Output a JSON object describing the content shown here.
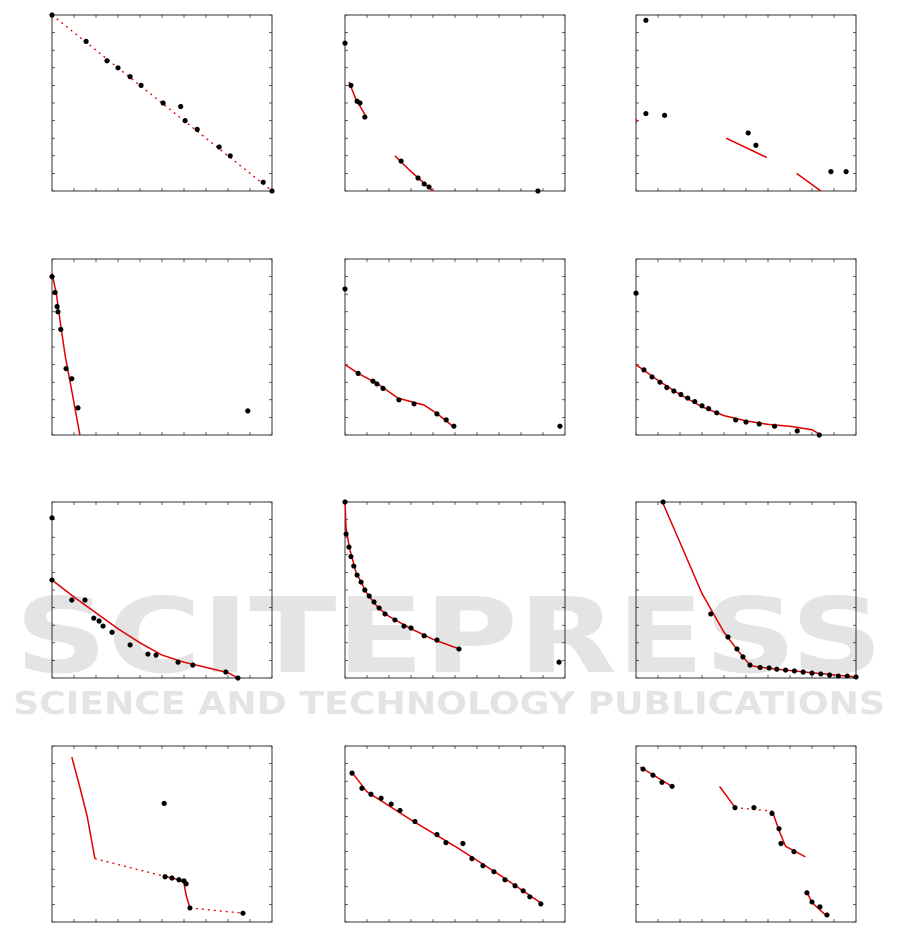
{
  "watermark": {
    "title": "SCITEPRESS",
    "subtitle": "SCIENCE AND TECHNOLOGY PUBLICATIONS"
  },
  "axes": {
    "xlim": [
      0,
      1
    ],
    "ylim": [
      0,
      1
    ],
    "xticks": [
      0,
      0.1,
      0.2,
      0.3,
      0.4,
      0.5,
      0.6,
      0.7,
      0.8,
      0.9,
      1
    ],
    "yticks": [
      0,
      0.1,
      0.2,
      0.3,
      0.4,
      0.5,
      0.6,
      0.7,
      0.8,
      0.9,
      1
    ]
  },
  "chart_data": [
    {
      "type": "scatter",
      "series": [
        {
          "kind": "points",
          "color": "#000000",
          "x": [
            0,
            0.155,
            0.25,
            0.3,
            0.355,
            0.405,
            0.505,
            0.585,
            0.605,
            0.66,
            0.76,
            0.81,
            0.96,
            1
          ],
          "values": [
            1,
            0.85,
            0.74,
            0.7,
            0.65,
            0.6,
            0.5,
            0.48,
            0.4,
            0.35,
            0.25,
            0.2,
            0.05,
            0
          ]
        },
        {
          "kind": "line",
          "style": "dotted",
          "color": "#e00000",
          "x": [
            0,
            1
          ],
          "values": [
            1,
            0
          ]
        }
      ]
    },
    {
      "type": "scatter",
      "series": [
        {
          "kind": "points",
          "color": "#000000",
          "x": [
            0,
            0.027,
            0.055,
            0.068,
            0.09,
            0.255,
            0.332,
            0.36,
            0.382,
            0.877
          ],
          "values": [
            0.84,
            0.6,
            0.51,
            0.5,
            0.42,
            0.17,
            0.074,
            0.04,
            0.023,
            0
          ]
        },
        {
          "kind": "line",
          "color": "#e00000",
          "x": [
            0.018,
            0.05,
            0.1,
            null,
            0.227,
            0.3,
            0.4
          ],
          "values": [
            0.62,
            0.52,
            0.415,
            null,
            0.2,
            0.11,
            0
          ]
        }
      ]
    },
    {
      "type": "scatter",
      "series": [
        {
          "kind": "points",
          "color": "#000000",
          "x": [
            0.045,
            0.045,
            0.13,
            0.51,
            0.545,
            0.886,
            0.955
          ],
          "values": [
            0.97,
            0.44,
            0.43,
            0.33,
            0.26,
            0.11,
            0.11
          ]
        },
        {
          "kind": "line",
          "color": "#e00000",
          "x": [
            0,
            0.005,
            null,
            0.41,
            0.595,
            null,
            0.73,
            0.84
          ],
          "values": [
            0.41,
            0.39,
            null,
            0.3,
            0.19,
            null,
            0.1,
            0
          ]
        }
      ]
    },
    {
      "type": "scatter",
      "series": [
        {
          "kind": "points",
          "color": "#000000",
          "x": [
            0,
            0.014,
            0.023,
            0.027,
            0.04,
            0.064,
            0.09,
            0.118,
            0.89
          ],
          "values": [
            0.9,
            0.81,
            0.73,
            0.7,
            0.6,
            0.377,
            0.32,
            0.154,
            0.137
          ]
        },
        {
          "kind": "line",
          "color": "#e00000",
          "x": [
            0,
            0.02,
            0.04,
            0.06,
            0.09,
            0.127
          ],
          "values": [
            0.92,
            0.8,
            0.62,
            0.45,
            0.25,
            0
          ]
        }
      ]
    },
    {
      "type": "scatter",
      "series": [
        {
          "kind": "points",
          "color": "#000000",
          "x": [
            0,
            0.06,
            0.127,
            0.145,
            0.173,
            0.245,
            0.314,
            0.418,
            0.46,
            0.495,
            0.977
          ],
          "values": [
            0.83,
            0.35,
            0.306,
            0.29,
            0.265,
            0.2,
            0.177,
            0.12,
            0.086,
            0.05,
            0.05
          ]
        },
        {
          "kind": "line",
          "color": "#e00000",
          "x": [
            0,
            0.06,
            0.15,
            0.24,
            0.3,
            0.36,
            0.42,
            0.5
          ],
          "values": [
            0.4,
            0.35,
            0.29,
            0.21,
            0.19,
            0.17,
            0.12,
            0.04
          ]
        }
      ]
    },
    {
      "type": "scatter",
      "series": [
        {
          "kind": "points",
          "color": "#000000",
          "x": [
            0,
            0.036,
            0.073,
            0.109,
            0.14,
            0.172,
            0.204,
            0.235,
            0.267,
            0.3,
            0.33,
            0.367,
            0.453,
            0.5,
            0.56,
            0.63,
            0.733,
            0.833
          ],
          "values": [
            0.806,
            0.37,
            0.33,
            0.3,
            0.27,
            0.25,
            0.23,
            0.21,
            0.19,
            0.166,
            0.15,
            0.126,
            0.086,
            0.074,
            0.063,
            0.05,
            0.023,
            0
          ]
        },
        {
          "kind": "line",
          "color": "#e00000",
          "x": [
            0,
            0.1,
            0.2,
            0.3,
            0.4,
            0.5,
            0.6,
            0.7,
            0.8,
            0.84
          ],
          "values": [
            0.4,
            0.31,
            0.23,
            0.16,
            0.11,
            0.08,
            0.06,
            0.05,
            0.03,
            0
          ]
        }
      ]
    },
    {
      "type": "scatter",
      "series": [
        {
          "kind": "points",
          "color": "#000000",
          "x": [
            0,
            0,
            0.09,
            0.15,
            0.19,
            0.214,
            0.232,
            0.273,
            0.355,
            0.436,
            0.473,
            0.573,
            0.64,
            0.79,
            0.845
          ],
          "values": [
            0.91,
            0.557,
            0.443,
            0.443,
            0.34,
            0.324,
            0.295,
            0.26,
            0.188,
            0.136,
            0.13,
            0.09,
            0.074,
            0.034,
            0
          ]
        },
        {
          "kind": "line",
          "color": "#e00000",
          "x": [
            0,
            0.1,
            0.2,
            0.3,
            0.4,
            0.5,
            0.6,
            0.7,
            0.8,
            0.845
          ],
          "values": [
            0.557,
            0.46,
            0.37,
            0.28,
            0.2,
            0.13,
            0.09,
            0.06,
            0.03,
            0
          ]
        }
      ]
    },
    {
      "type": "scatter",
      "series": [
        {
          "kind": "points",
          "color": "#000000",
          "x": [
            0,
            0.005,
            0.018,
            0.027,
            0.04,
            0.055,
            0.073,
            0.09,
            0.11,
            0.132,
            0.155,
            0.182,
            0.227,
            0.268,
            0.3,
            0.36,
            0.418,
            0.518,
            0.973
          ],
          "values": [
            1,
            0.818,
            0.744,
            0.69,
            0.636,
            0.585,
            0.545,
            0.5,
            0.466,
            0.432,
            0.398,
            0.364,
            0.33,
            0.295,
            0.284,
            0.24,
            0.216,
            0.165,
            0.09
          ]
        },
        {
          "kind": "line",
          "color": "#e00000",
          "x": [
            0,
            0.005,
            0.02,
            0.05,
            0.1,
            0.15,
            0.2,
            0.3,
            0.4,
            0.52
          ],
          "values": [
            1,
            0.85,
            0.74,
            0.6,
            0.48,
            0.4,
            0.35,
            0.28,
            0.22,
            0.165
          ]
        }
      ]
    },
    {
      "type": "scatter",
      "series": [
        {
          "kind": "points",
          "color": "#000000",
          "x": [
            0.123,
            0.34,
            0.418,
            0.459,
            0.486,
            0.518,
            0.564,
            0.605,
            0.64,
            0.68,
            0.72,
            0.76,
            0.8,
            0.84,
            0.88,
            0.92,
            0.96,
            1
          ],
          "values": [
            1,
            0.364,
            0.233,
            0.165,
            0.12,
            0.074,
            0.06,
            0.057,
            0.05,
            0.045,
            0.04,
            0.034,
            0.028,
            0.023,
            0.017,
            0.011,
            0.011,
            0.006
          ]
        },
        {
          "kind": "line",
          "color": "#e00000",
          "x": [
            0.12,
            0.2,
            0.3,
            0.4,
            0.46,
            0.52,
            0.6,
            0.8,
            1
          ],
          "values": [
            1,
            0.77,
            0.48,
            0.26,
            0.16,
            0.07,
            0.055,
            0.03,
            0.006
          ]
        }
      ]
    },
    {
      "type": "scatter",
      "series": [
        {
          "kind": "points",
          "color": "#000000",
          "x": [
            0.51,
            0.514,
            0.545,
            0.577,
            0.6,
            0.61,
            0.627,
            0.868
          ],
          "values": [
            0.674,
            0.257,
            0.25,
            0.24,
            0.234,
            0.217,
            0.08,
            0.05
          ]
        },
        {
          "kind": "line",
          "color": "#e00000",
          "x": [
            0.09,
            0.13,
            0.16,
            0.195,
            null,
            0.52,
            0.58,
            0.6,
            0.61,
            0.627
          ],
          "values": [
            0.937,
            0.75,
            0.6,
            0.36,
            null,
            0.257,
            0.24,
            0.22,
            0.15,
            0.08
          ]
        },
        {
          "kind": "line",
          "style": "dotted",
          "color": "#e00000",
          "x": [
            0.195,
            0.52,
            null,
            0.627,
            0.87
          ],
          "values": [
            0.36,
            0.257,
            null,
            0.08,
            0.05
          ]
        }
      ]
    },
    {
      "type": "scatter",
      "series": [
        {
          "kind": "points",
          "color": "#000000",
          "x": [
            0.032,
            0.077,
            0.118,
            0.164,
            0.21,
            0.25,
            0.318,
            0.418,
            0.459,
            0.536,
            0.577,
            0.627,
            0.677,
            0.727,
            0.773,
            0.81,
            0.84,
            0.89
          ],
          "values": [
            0.846,
            0.76,
            0.726,
            0.703,
            0.67,
            0.634,
            0.571,
            0.497,
            0.451,
            0.446,
            0.36,
            0.32,
            0.286,
            0.24,
            0.206,
            0.177,
            0.143,
            0.103
          ]
        },
        {
          "kind": "line",
          "color": "#e00000",
          "x": [
            0.032,
            0.1,
            0.3,
            0.5,
            0.7,
            0.9
          ],
          "values": [
            0.85,
            0.74,
            0.58,
            0.43,
            0.27,
            0.1
          ]
        }
      ]
    },
    {
      "type": "scatter",
      "series": [
        {
          "kind": "points",
          "color": "#000000",
          "x": [
            0.032,
            0.077,
            0.118,
            0.164,
            0.45,
            0.536,
            0.618,
            0.65,
            0.659,
            0.718,
            0.777,
            0.8,
            0.836,
            0.868
          ],
          "values": [
            0.869,
            0.834,
            0.794,
            0.771,
            0.65,
            0.65,
            0.617,
            0.53,
            0.446,
            0.4,
            0.166,
            0.114,
            0.086,
            0.04
          ]
        },
        {
          "kind": "line",
          "color": "#e00000",
          "x": [
            0.02,
            0.164,
            null,
            0.38,
            0.41,
            0.45,
            null,
            0.62,
            0.65,
            0.68,
            0.77,
            null,
            0.777,
            0.8,
            0.87
          ],
          "values": [
            0.88,
            0.77,
            null,
            0.77,
            0.72,
            0.65,
            null,
            0.63,
            0.52,
            0.43,
            0.37,
            null,
            0.17,
            0.11,
            0.03
          ]
        },
        {
          "kind": "line",
          "style": "dotted",
          "color": "#e00000",
          "x": [
            0.45,
            0.62
          ],
          "values": [
            0.65,
            0.63
          ]
        }
      ]
    }
  ]
}
